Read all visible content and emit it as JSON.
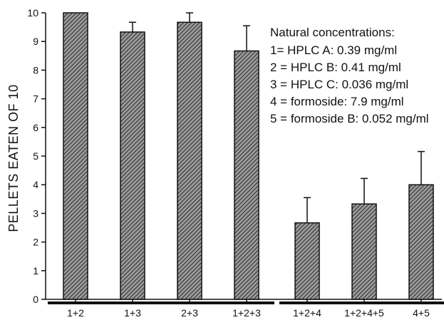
{
  "chart_data": {
    "type": "bar",
    "ylabel": "PELLETS EATEN OF 10",
    "xlabel": "",
    "ylim": [
      0,
      10
    ],
    "yticks": [
      0,
      1,
      2,
      3,
      4,
      5,
      6,
      7,
      8,
      9,
      10
    ],
    "categories": [
      "1+2",
      "1+3",
      "2+3",
      "1+2+3",
      "1+2+4",
      "1+2+4+5",
      "4+5"
    ],
    "values": [
      10,
      9.33,
      9.67,
      8.67,
      2.67,
      3.33,
      4.0
    ],
    "error_upper": [
      10,
      9.67,
      10,
      9.55,
      3.55,
      4.22,
      5.16
    ],
    "bar_fill": "hatched",
    "grid": false,
    "legend_position": "top-right",
    "annotation": {
      "title": "Natural concentrations:",
      "lines": [
        "1= HPLC A: 0.39 mg/ml",
        "2 = HPLC B: 0.41 mg/ml",
        "3 = HPLC C: 0.036 mg/ml",
        "4 = formoside: 7.9 mg/ml",
        "5 = formoside B: 0.052 mg/ml"
      ]
    },
    "groups": [
      {
        "start": 0,
        "end": 3
      },
      {
        "start": 4,
        "end": 6
      }
    ]
  },
  "colors": {
    "ink": "#111111",
    "bar_fill": "#9a9a9a",
    "hatch": "#2a2a2a"
  }
}
